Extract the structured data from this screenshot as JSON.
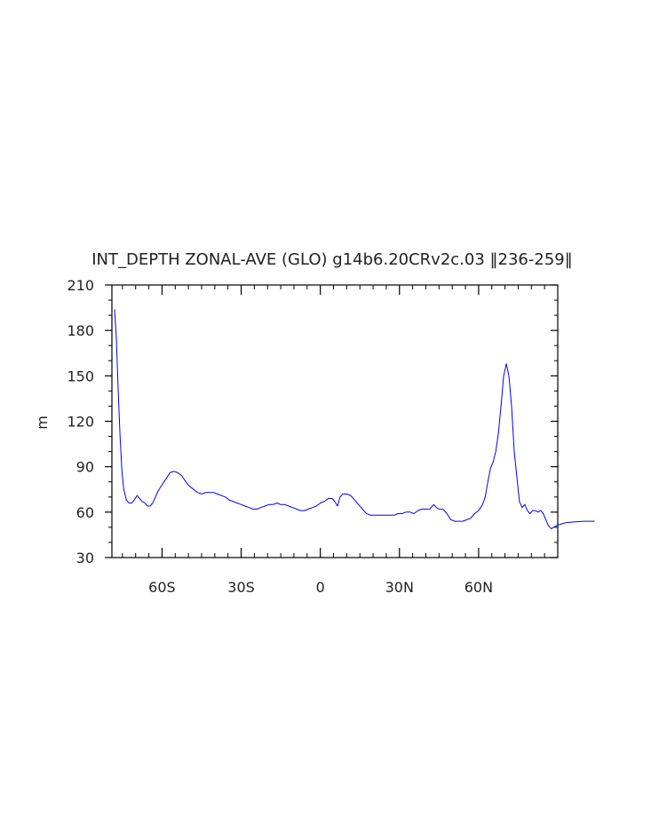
{
  "chart_data": {
    "type": "line",
    "title": "INT_DEPTH ZONAL-AVE (GLO) g14b6.20CRv2c.03 ‖236-259‖",
    "xlabel": "",
    "ylabel": "m",
    "xlim": [
      -79,
      90
    ],
    "ylim": [
      30,
      210
    ],
    "xticks": [
      {
        "value": -60,
        "label": "60S"
      },
      {
        "value": -30,
        "label": "30S"
      },
      {
        "value": 0,
        "label": "0"
      },
      {
        "value": 30,
        "label": "30N"
      },
      {
        "value": 60,
        "label": "60N"
      }
    ],
    "yticks": [
      {
        "value": 30,
        "label": "30"
      },
      {
        "value": 60,
        "label": "60"
      },
      {
        "value": 90,
        "label": "90"
      },
      {
        "value": 120,
        "label": "120"
      },
      {
        "value": 150,
        "label": "150"
      },
      {
        "value": 180,
        "label": "180"
      },
      {
        "value": 210,
        "label": "210"
      }
    ],
    "grid": false,
    "series": [
      {
        "color": "#0000ff",
        "points": [
          [
            -78,
            194
          ],
          [
            -77.3,
            175
          ],
          [
            -76.6,
            140
          ],
          [
            -75.9,
            110
          ],
          [
            -75.2,
            87
          ],
          [
            -74.5,
            75
          ],
          [
            -73.5,
            68
          ],
          [
            -72.5,
            66
          ],
          [
            -71.5,
            66
          ],
          [
            -70.5,
            68
          ],
          [
            -69.5,
            71
          ],
          [
            -68.5,
            69
          ],
          [
            -67.5,
            67
          ],
          [
            -66.5,
            66
          ],
          [
            -65.5,
            64
          ],
          [
            -64.5,
            64
          ],
          [
            -63.5,
            66
          ],
          [
            -62.5,
            70
          ],
          [
            -61.5,
            74
          ],
          [
            -60,
            78
          ],
          [
            -58.5,
            82
          ],
          [
            -57,
            86
          ],
          [
            -55.5,
            87
          ],
          [
            -54,
            86
          ],
          [
            -52.5,
            84
          ],
          [
            -51,
            80
          ],
          [
            -49.5,
            77
          ],
          [
            -48,
            75
          ],
          [
            -46.5,
            73
          ],
          [
            -45,
            72
          ],
          [
            -43.5,
            73
          ],
          [
            -42,
            73
          ],
          [
            -40.5,
            73
          ],
          [
            -39,
            72
          ],
          [
            -37.5,
            71
          ],
          [
            -36,
            70
          ],
          [
            -34.5,
            68
          ],
          [
            -33,
            67
          ],
          [
            -31.5,
            66
          ],
          [
            -30,
            65
          ],
          [
            -28.5,
            64
          ],
          [
            -27,
            63
          ],
          [
            -25.5,
            62
          ],
          [
            -24,
            62
          ],
          [
            -22.5,
            63
          ],
          [
            -21,
            64
          ],
          [
            -19.5,
            65
          ],
          [
            -18,
            65
          ],
          [
            -16.5,
            66
          ],
          [
            -15,
            65
          ],
          [
            -13.5,
            65
          ],
          [
            -12,
            64
          ],
          [
            -10.5,
            63
          ],
          [
            -9,
            62
          ],
          [
            -7.5,
            61
          ],
          [
            -6,
            61
          ],
          [
            -4.5,
            62
          ],
          [
            -3,
            63
          ],
          [
            -1.5,
            64
          ],
          [
            0,
            66
          ],
          [
            1.5,
            67
          ],
          [
            3,
            69
          ],
          [
            4.5,
            69
          ],
          [
            5.5,
            67
          ],
          [
            6.5,
            64
          ],
          [
            7.5,
            70
          ],
          [
            8.5,
            72
          ],
          [
            10,
            72
          ],
          [
            11.5,
            71
          ],
          [
            13,
            68
          ],
          [
            14.5,
            65
          ],
          [
            16,
            62
          ],
          [
            17.5,
            59
          ],
          [
            19,
            58
          ],
          [
            20.5,
            58
          ],
          [
            22,
            58
          ],
          [
            23.5,
            58
          ],
          [
            25,
            58
          ],
          [
            26.5,
            58
          ],
          [
            28,
            58
          ],
          [
            29.5,
            59
          ],
          [
            31,
            59
          ],
          [
            32.5,
            60
          ],
          [
            34,
            60
          ],
          [
            35.5,
            59
          ],
          [
            37,
            61
          ],
          [
            38.5,
            62
          ],
          [
            40,
            62
          ],
          [
            41.5,
            62
          ],
          [
            43,
            65
          ],
          [
            44,
            63
          ],
          [
            45,
            62
          ],
          [
            46.5,
            62
          ],
          [
            48,
            59
          ],
          [
            49.5,
            55
          ],
          [
            51,
            54
          ],
          [
            52.5,
            54
          ],
          [
            54,
            54
          ],
          [
            55.5,
            55
          ],
          [
            57,
            56
          ],
          [
            58.5,
            59
          ],
          [
            60,
            61
          ],
          [
            61.5,
            65
          ],
          [
            62.5,
            70
          ],
          [
            63.5,
            80
          ],
          [
            64.5,
            89
          ],
          [
            65.5,
            93
          ],
          [
            66.5,
            100
          ],
          [
            67.5,
            112
          ],
          [
            68.5,
            130
          ],
          [
            69.5,
            150
          ],
          [
            70.5,
            158
          ],
          [
            71.5,
            150
          ],
          [
            72.5,
            130
          ],
          [
            73.5,
            100
          ],
          [
            74.5,
            83
          ],
          [
            75.5,
            67
          ],
          [
            76.5,
            63
          ],
          [
            77.5,
            65
          ],
          [
            78.5,
            61
          ],
          [
            79.5,
            59
          ],
          [
            80.5,
            61
          ],
          [
            81.5,
            61
          ],
          [
            82.5,
            60
          ],
          [
            83.5,
            61
          ],
          [
            84.5,
            59
          ],
          [
            85.5,
            55
          ],
          [
            86.5,
            51
          ],
          [
            87.5,
            49
          ],
          [
            88.5,
            50
          ],
          [
            89.5,
            51
          ],
          [
            91,
            52
          ],
          [
            93,
            53
          ],
          [
            96,
            53.5
          ],
          [
            100,
            54
          ],
          [
            104,
            54
          ]
        ]
      }
    ]
  }
}
